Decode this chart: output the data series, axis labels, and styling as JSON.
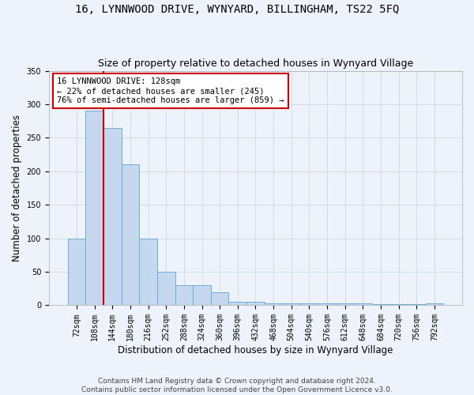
{
  "title": "16, LYNNWOOD DRIVE, WYNYARD, BILLINGHAM, TS22 5FQ",
  "subtitle": "Size of property relative to detached houses in Wynyard Village",
  "xlabel": "Distribution of detached houses by size in Wynyard Village",
  "ylabel": "Number of detached properties",
  "bin_labels": [
    "72sqm",
    "108sqm",
    "144sqm",
    "180sqm",
    "216sqm",
    "252sqm",
    "288sqm",
    "324sqm",
    "360sqm",
    "396sqm",
    "432sqm",
    "468sqm",
    "504sqm",
    "540sqm",
    "576sqm",
    "612sqm",
    "648sqm",
    "684sqm",
    "720sqm",
    "756sqm",
    "792sqm"
  ],
  "bar_values": [
    100,
    290,
    265,
    210,
    100,
    50,
    30,
    30,
    20,
    5,
    5,
    3,
    3,
    3,
    3,
    3,
    3,
    2,
    2,
    2,
    3
  ],
  "bar_color": "#c5d8f0",
  "bar_edgecolor": "#6baed6",
  "vline_color": "#cc0000",
  "annotation_text": "16 LYNNWOOD DRIVE: 128sqm\n← 22% of detached houses are smaller (245)\n76% of semi-detached houses are larger (859) →",
  "annotation_box_edgecolor": "#cc0000",
  "annotation_box_facecolor": "#ffffff",
  "ylim": [
    0,
    350
  ],
  "yticks": [
    0,
    50,
    100,
    150,
    200,
    250,
    300,
    350
  ],
  "footer_text": "Contains HM Land Registry data © Crown copyright and database right 2024.\nContains public sector information licensed under the Open Government Licence v3.0.",
  "background_color": "#eef2fa",
  "grid_color": "#d0d8e8",
  "title_fontsize": 10,
  "subtitle_fontsize": 9,
  "axis_label_fontsize": 8.5,
  "tick_fontsize": 7,
  "footer_fontsize": 6.5,
  "annot_fontsize": 7.5
}
